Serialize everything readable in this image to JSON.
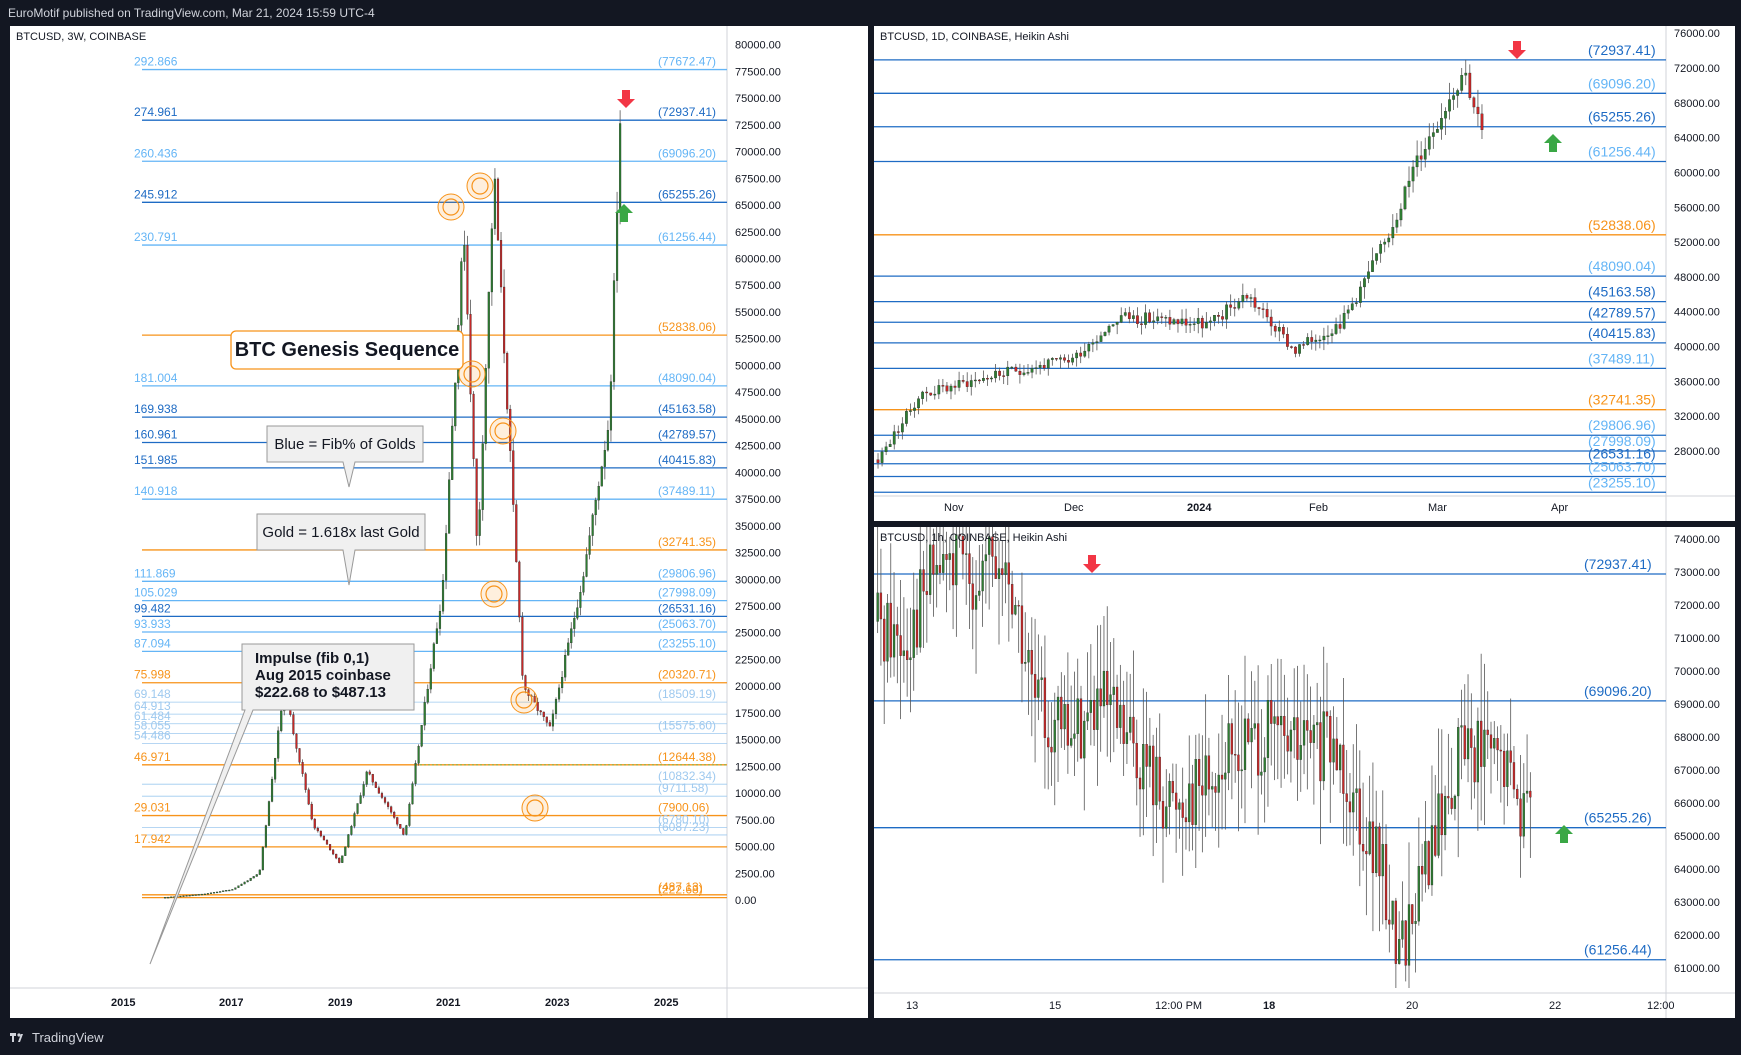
{
  "header": {
    "published": "EuroMotif published on TradingView.com, Mar 21, 2024 15:59 UTC-4"
  },
  "footer": {
    "brand": "TradingView",
    "logo_icon": "tradingview-logo-icon"
  },
  "colors": {
    "blue": "#1e6bc4",
    "light_blue": "#64b5f6",
    "gold": "#f7931a",
    "up": "#2e7d32",
    "down": "#c62828",
    "red_arrow": "#f23645",
    "green_arrow": "#3aa745"
  },
  "chart_data": [
    {
      "type": "candlestick",
      "title": "BTCUSD, 3W, COINBASE",
      "x_ticks": [
        "2015",
        "2017",
        "2019",
        "2021",
        "2023",
        "2025"
      ],
      "y_ticks": [
        "80000.00",
        "77500.00",
        "75000.00",
        "72500.00",
        "70000.00",
        "67500.00",
        "65000.00",
        "62500.00",
        "60000.00",
        "57500.00",
        "55000.00",
        "52500.00",
        "50000.00",
        "47500.00",
        "45000.00",
        "42500.00",
        "40000.00",
        "37500.00",
        "35000.00",
        "32500.00",
        "30000.00",
        "27500.00",
        "25000.00",
        "22500.00",
        "20000.00",
        "17500.00",
        "15000.00",
        "12500.00",
        "10000.00",
        "7500.00",
        "5000.00",
        "2500.00",
        "0.00"
      ],
      "ylim": [
        0,
        81000
      ],
      "levels": [
        {
          "ratio": "292.866",
          "price": "(77672.47)",
          "value": 77672.47,
          "color": "light"
        },
        {
          "ratio": "274.961",
          "price": "(72937.41)",
          "value": 72937.41,
          "color": "blue"
        },
        {
          "ratio": "260.436",
          "price": "(69096.20)",
          "value": 69096.2,
          "color": "light"
        },
        {
          "ratio": "245.912",
          "price": "(65255.26)",
          "value": 65255.26,
          "color": "blue"
        },
        {
          "ratio": "230.791",
          "price": "(61256.44)",
          "value": 61256.44,
          "color": "light"
        },
        {
          "ratio": "",
          "price": "(52838.06)",
          "value": 52838.06,
          "color": "gold"
        },
        {
          "ratio": "181.004",
          "price": "(48090.04)",
          "value": 48090.04,
          "color": "light"
        },
        {
          "ratio": "169.938",
          "price": "(45163.58)",
          "value": 45163.58,
          "color": "blue"
        },
        {
          "ratio": "160.961",
          "price": "(42789.57)",
          "value": 42789.57,
          "color": "blue"
        },
        {
          "ratio": "151.985",
          "price": "(40415.83)",
          "value": 40415.83,
          "color": "blue"
        },
        {
          "ratio": "140.918",
          "price": "(37489.11)",
          "value": 37489.11,
          "color": "light"
        },
        {
          "ratio": "",
          "price": "(32741.35)",
          "value": 32741.35,
          "color": "gold"
        },
        {
          "ratio": "111.869",
          "price": "(29806.96)",
          "value": 29806.96,
          "color": "light"
        },
        {
          "ratio": "105.029",
          "price": "(27998.09)",
          "value": 27998.09,
          "color": "light"
        },
        {
          "ratio": "99.482",
          "price": "(26531.16)",
          "value": 26531.16,
          "color": "blue"
        },
        {
          "ratio": "93.933",
          "price": "(25063.70)",
          "value": 25063.7,
          "color": "light"
        },
        {
          "ratio": "87.094",
          "price": "(23255.10)",
          "value": 23255.1,
          "color": "light"
        },
        {
          "ratio": "75.998",
          "price": "(20320.71)",
          "value": 20320.71,
          "color": "gold"
        },
        {
          "ratio": "69.148",
          "price": "(18509.19)",
          "value": 18509.19,
          "color": "faint"
        },
        {
          "ratio": "64.913",
          "price": "",
          "value": 17389,
          "color": "faint"
        },
        {
          "ratio": "61.484",
          "price": "",
          "value": 16482,
          "color": "faint"
        },
        {
          "ratio": "58.055",
          "price": "(15575.60)",
          "value": 15575.6,
          "color": "faint"
        },
        {
          "ratio": "54.486",
          "price": "",
          "value": 14636,
          "color": "faint"
        },
        {
          "ratio": "46.971",
          "price": "(12644.38)",
          "value": 12644.38,
          "color": "gold"
        },
        {
          "ratio": "",
          "price": "(10832.34)",
          "value": 10832.34,
          "color": "faint"
        },
        {
          "ratio": "",
          "price": "(9711.58)",
          "value": 9711.58,
          "color": "faint"
        },
        {
          "ratio": "29.031",
          "price": "(7900.06)",
          "value": 7900.06,
          "color": "gold"
        },
        {
          "ratio": "",
          "price": "(6780.10)",
          "value": 6780.1,
          "color": "faint"
        },
        {
          "ratio": "",
          "price": "(6087.23)",
          "value": 6087.23,
          "color": "faint"
        },
        {
          "ratio": "17.942",
          "price": "",
          "value": 4970,
          "color": "gold"
        },
        {
          "ratio": "",
          "price": "(487.13)",
          "value": 487.13,
          "color": "gold"
        },
        {
          "ratio": "",
          "price": "(222.68)",
          "value": 222.68,
          "color": "gold"
        }
      ],
      "annotations": {
        "genesis": "BTC Genesis Sequence",
        "blue_note": "Blue = Fib% of Golds",
        "gold_note": "Gold = 1.618x last Gold",
        "impulse": [
          "Impulse (fib 0,1)",
          "Aug 2015 coinbase",
          "$222.68 to $487.13"
        ]
      },
      "series": [
        {
          "name": "",
          "x": [
            "2015.75",
            "2016.5",
            "2017.0",
            "2017.5",
            "2017.96",
            "2018.5",
            "2019.0",
            "2019.5",
            "2020.2",
            "2020.9",
            "2021.3",
            "2021.55",
            "2021.86",
            "2022.4",
            "2022.9",
            "2023.5",
            "2024.0",
            "2024.2"
          ],
          "y": [
            250,
            580,
            1000,
            2500,
            19800,
            7000,
            3400,
            12000,
            6000,
            29000,
            63000,
            32000,
            68000,
            20000,
            16000,
            30000,
            45000,
            73000
          ]
        }
      ]
    },
    {
      "type": "candlestick",
      "title": "BTCUSD, 1D, COINBASE, Heikin Ashi",
      "x_ticks": [
        "Nov",
        "Dec",
        "2024",
        "Feb",
        "Mar",
        "Apr"
      ],
      "y_ticks": [
        "76000.00",
        "72000.00",
        "68000.00",
        "64000.00",
        "60000.00",
        "56000.00",
        "52000.00",
        "48000.00",
        "44000.00",
        "40000.00",
        "36000.00",
        "32000.00",
        "28000.00"
      ],
      "ylim": [
        23400,
        76600
      ],
      "levels": [
        {
          "price": "(72937.41)",
          "value": 72937.41,
          "color": "blue"
        },
        {
          "price": "(69096.20)",
          "value": 69096.2,
          "color": "light"
        },
        {
          "price": "(65255.26)",
          "value": 65255.26,
          "color": "blue"
        },
        {
          "price": "(61256.44)",
          "value": 61256.44,
          "color": "light"
        },
        {
          "price": "(52838.06)",
          "value": 52838.06,
          "color": "gold"
        },
        {
          "price": "(48090.04)",
          "value": 48090.04,
          "color": "light"
        },
        {
          "price": "(45163.58)",
          "value": 45163.58,
          "color": "blue"
        },
        {
          "price": "(42789.57)",
          "value": 42789.57,
          "color": "blue"
        },
        {
          "price": "(40415.83)",
          "value": 40415.83,
          "color": "blue"
        },
        {
          "price": "(37489.11)",
          "value": 37489.11,
          "color": "light"
        },
        {
          "price": "(32741.35)",
          "value": 32741.35,
          "color": "gold"
        },
        {
          "price": "(29806.96)",
          "value": 29806.96,
          "color": "light"
        },
        {
          "price": "(27998.09)",
          "value": 27998.09,
          "color": "light"
        },
        {
          "price": "(26531.16)",
          "value": 26531.16,
          "color": "blue"
        },
        {
          "price": "(25063.70)",
          "value": 25063.7,
          "color": "light"
        },
        {
          "price": "(23255.10)",
          "value": 23255.1,
          "color": "light"
        }
      ],
      "series": [
        {
          "name": "",
          "x": [
            "Oct 15",
            "Oct 25",
            "Nov 10",
            "Dec 1",
            "Dec 10",
            "Jan 1",
            "Jan 10",
            "Jan 23",
            "Feb 5",
            "Feb 15",
            "Feb 28",
            "Mar 5",
            "Mar 14",
            "Mar 20"
          ],
          "y": [
            27000,
            34500,
            36500,
            38500,
            43500,
            42500,
            46000,
            39500,
            43000,
            52000,
            61000,
            66500,
            72000,
            64500
          ]
        }
      ]
    },
    {
      "type": "candlestick",
      "title": "BTCUSD, 1h, COINBASE, Heikin Ashi",
      "x_ticks": [
        "13",
        "15",
        "12:00 PM",
        "18",
        "20",
        "22",
        "12:00"
      ],
      "y_ticks": [
        "74000.00",
        "73000.00",
        "72000.00",
        "71000.00",
        "70000.00",
        "69000.00",
        "68000.00",
        "67000.00",
        "66000.00",
        "65000.00",
        "64000.00",
        "63000.00",
        "62000.00",
        "61000.00"
      ],
      "ylim": [
        60400,
        74300
      ],
      "levels": [
        {
          "price": "(72937.41)",
          "value": 72937.41,
          "color": "blue"
        },
        {
          "price": "(69096.20)",
          "value": 69096.2,
          "color": "blue"
        },
        {
          "price": "(65255.26)",
          "value": 65255.26,
          "color": "blue"
        },
        {
          "price": "(61256.44)",
          "value": 61256.44,
          "color": "blue"
        }
      ],
      "series": [
        {
          "name": "",
          "x": [
            "Mar 12 12:00",
            "Mar 13 00:00",
            "Mar 13 12:00",
            "Mar 14 12:00",
            "Mar 15 00:00",
            "Mar 15 12:00",
            "Mar 16 00:00",
            "Mar 17 00:00",
            "Mar 18 00:00",
            "Mar 19 00:00",
            "Mar 19 18:00",
            "Mar 20 00:00",
            "Mar 20 18:00",
            "Mar 21 06:00",
            "Mar 21 12:00"
          ],
          "y": [
            71500,
            71000,
            73200,
            73000,
            69000,
            68000,
            69000,
            66000,
            68000,
            67500,
            64000,
            61500,
            68000,
            67000,
            65500
          ]
        }
      ]
    }
  ]
}
